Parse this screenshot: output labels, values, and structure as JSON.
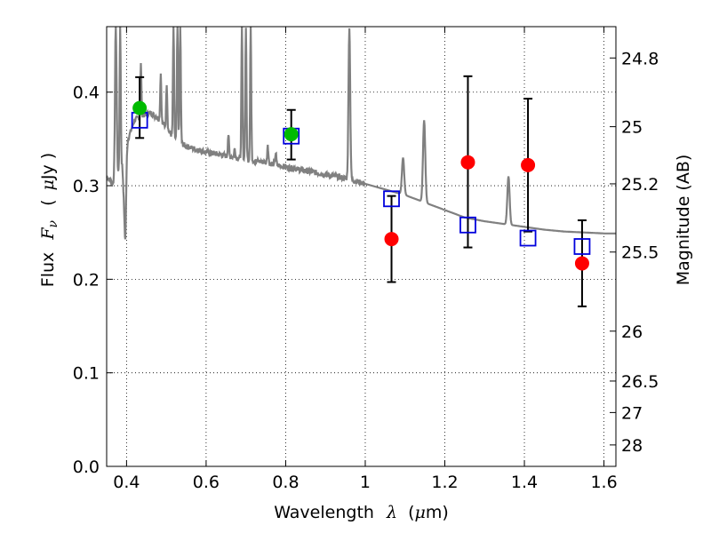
{
  "chart_data": {
    "type": "scatter",
    "title": "",
    "xlabel": {
      "main": "Wavelength",
      "symbol": "λ",
      "unit_open": "(",
      "unit_mu": "μ",
      "unit_rest": "m)"
    },
    "ylabel": {
      "main": "Flux",
      "symbol": "F",
      "subscript": "ν",
      "unit_open": "(",
      "unit_mu": "μ",
      "unit_rest": "Jy )"
    },
    "ylabel_right": "Magnitude (AB)",
    "xlim": [
      0.35,
      1.63
    ],
    "ylim": [
      0.0,
      0.47
    ],
    "x_ticks": [
      "0.4",
      "0.6",
      "0.8",
      "1",
      "1.2",
      "1.4",
      "1.6"
    ],
    "x_tick_values": [
      0.4,
      0.6,
      0.8,
      1.0,
      1.2,
      1.4,
      1.6
    ],
    "y_ticks": [
      "0.0",
      "0.1",
      "0.2",
      "0.3",
      "0.4"
    ],
    "y_tick_values": [
      0.0,
      0.1,
      0.2,
      0.3,
      0.4
    ],
    "right_ticks": [
      "24.8",
      "25",
      "25.2",
      "25.5",
      "26",
      "26.5",
      "27",
      "28"
    ],
    "right_tick_values": [
      24.8,
      25.0,
      25.2,
      25.5,
      26.0,
      26.5,
      27.0,
      28.0
    ],
    "grid": true,
    "colors": {
      "sed": "#808080",
      "green_points": "#00bb00",
      "red_points": "#ff0000",
      "model_boxes": "#0000dd",
      "errorbars": "#000000"
    },
    "observed": [
      {
        "x": 0.433,
        "y": 0.383,
        "yerr_low": 0.351,
        "yerr_high": 0.416,
        "color": "green"
      },
      {
        "x": 0.814,
        "y": 0.355,
        "yerr_low": 0.328,
        "yerr_high": 0.381,
        "color": "green"
      },
      {
        "x": 1.066,
        "y": 0.243,
        "yerr_low": 0.197,
        "yerr_high": 0.289,
        "color": "red"
      },
      {
        "x": 1.258,
        "y": 0.325,
        "yerr_low": 0.234,
        "yerr_high": 0.417,
        "color": "red"
      },
      {
        "x": 1.409,
        "y": 0.322,
        "yerr_low": 0.251,
        "yerr_high": 0.393,
        "color": "red"
      },
      {
        "x": 1.545,
        "y": 0.217,
        "yerr_low": 0.171,
        "yerr_high": 0.263,
        "color": "red"
      }
    ],
    "model_photometry": [
      {
        "x": 0.433,
        "y": 0.37
      },
      {
        "x": 0.814,
        "y": 0.353
      },
      {
        "x": 1.066,
        "y": 0.286
      },
      {
        "x": 1.258,
        "y": 0.258
      },
      {
        "x": 1.409,
        "y": 0.244
      },
      {
        "x": 1.545,
        "y": 0.235
      }
    ],
    "sed_continuum": [
      [
        0.35,
        0.31
      ],
      [
        0.37,
        0.3
      ],
      [
        0.385,
        0.32
      ],
      [
        0.4,
        0.345
      ],
      [
        0.42,
        0.37
      ],
      [
        0.44,
        0.375
      ],
      [
        0.46,
        0.378
      ],
      [
        0.48,
        0.372
      ],
      [
        0.5,
        0.362
      ],
      [
        0.52,
        0.35
      ],
      [
        0.55,
        0.342
      ],
      [
        0.6,
        0.336
      ],
      [
        0.65,
        0.332
      ],
      [
        0.7,
        0.328
      ],
      [
        0.75,
        0.325
      ],
      [
        0.8,
        0.32
      ],
      [
        0.85,
        0.316
      ],
      [
        0.9,
        0.312
      ],
      [
        0.95,
        0.308
      ],
      [
        1.0,
        0.302
      ],
      [
        1.05,
        0.296
      ],
      [
        1.1,
        0.29
      ],
      [
        1.15,
        0.282
      ],
      [
        1.2,
        0.274
      ],
      [
        1.25,
        0.266
      ],
      [
        1.3,
        0.262
      ],
      [
        1.35,
        0.259
      ],
      [
        1.4,
        0.256
      ],
      [
        1.45,
        0.253
      ],
      [
        1.5,
        0.251
      ],
      [
        1.55,
        0.25
      ],
      [
        1.6,
        0.249
      ],
      [
        1.63,
        0.249
      ]
    ],
    "sed_emission_lines": [
      {
        "x": 0.373,
        "peak": 0.47,
        "width": 0.003
      },
      {
        "x": 0.384,
        "peak": 0.47,
        "width": 0.002
      },
      {
        "x": 0.436,
        "peak": 0.43,
        "width": 0.002
      },
      {
        "x": 0.486,
        "peak": 0.42,
        "width": 0.002
      },
      {
        "x": 0.501,
        "peak": 0.41,
        "width": 0.002
      },
      {
        "x": 0.518,
        "peak": 0.47,
        "width": 0.002
      },
      {
        "x": 0.528,
        "peak": 0.47,
        "width": 0.002
      },
      {
        "x": 0.535,
        "peak": 0.47,
        "width": 0.002
      },
      {
        "x": 0.656,
        "peak": 0.355,
        "width": 0.002
      },
      {
        "x": 0.672,
        "peak": 0.34,
        "width": 0.002
      },
      {
        "x": 0.69,
        "peak": 0.47,
        "width": 0.002
      },
      {
        "x": 0.7,
        "peak": 0.47,
        "width": 0.002
      },
      {
        "x": 0.712,
        "peak": 0.47,
        "width": 0.002
      },
      {
        "x": 0.755,
        "peak": 0.345,
        "width": 0.002
      },
      {
        "x": 0.775,
        "peak": 0.335,
        "width": 0.002
      },
      {
        "x": 0.822,
        "peak": 0.32,
        "width": 0.002
      },
      {
        "x": 0.96,
        "peak": 0.47,
        "width": 0.003
      },
      {
        "x": 1.095,
        "peak": 0.33,
        "width": 0.004
      },
      {
        "x": 1.148,
        "peak": 0.37,
        "width": 0.004
      },
      {
        "x": 1.36,
        "peak": 0.31,
        "width": 0.004
      }
    ],
    "sed_absorption_lines": [
      {
        "x": 0.393,
        "depth": 0.3,
        "width": 0.003
      },
      {
        "x": 0.397,
        "depth": 0.25,
        "width": 0.003
      }
    ]
  }
}
